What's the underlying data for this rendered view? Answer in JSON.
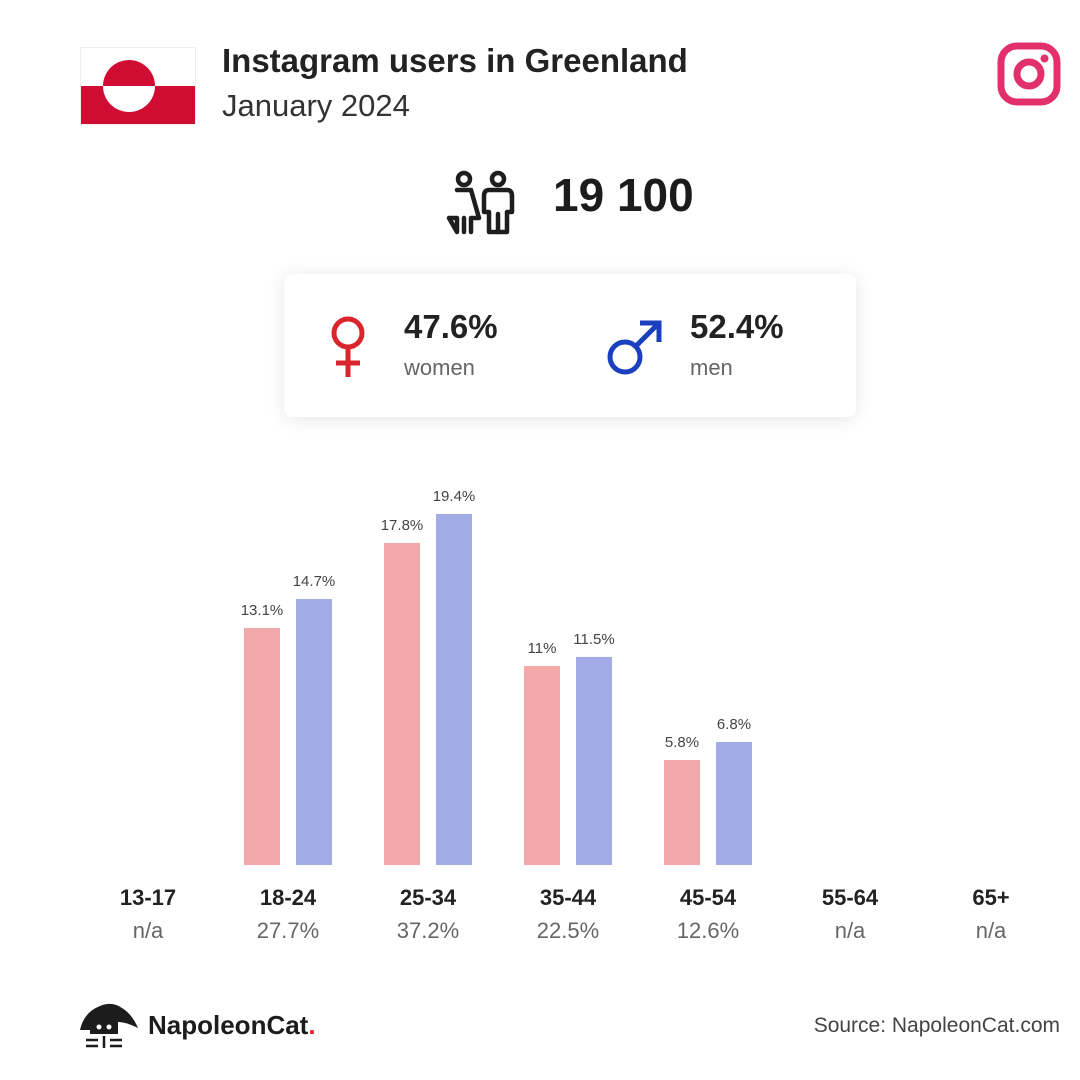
{
  "header": {
    "title": "Instagram users in Greenland",
    "subtitle": "January 2024"
  },
  "colors": {
    "flag_red": "#d00c33",
    "instagram": "#e1306c",
    "women": "#f3a8a9",
    "men": "#a2ade8",
    "female_symbol": "#d8262c",
    "male_symbol": "#1a3fbf"
  },
  "icons": {
    "flag": "greenland-flag-icon",
    "platform": "instagram-icon",
    "users": "people-icon",
    "women": "female-symbol-icon",
    "men": "male-symbol-icon",
    "brand": "napoleoncat-logo-icon"
  },
  "total": {
    "value": "19 100"
  },
  "gender": {
    "women": {
      "pct": "47.6%",
      "label": "women"
    },
    "men": {
      "pct": "52.4%",
      "label": "men"
    }
  },
  "chart_data": {
    "type": "bar",
    "categories": [
      "13-17",
      "18-24",
      "25-34",
      "35-44",
      "45-54",
      "55-64",
      "65+"
    ],
    "category_totals": [
      "n/a",
      "27.7%",
      "37.2%",
      "22.5%",
      "12.6%",
      "n/a",
      "n/a"
    ],
    "series": [
      {
        "key": "women",
        "values": [
          null,
          13.1,
          17.8,
          11,
          5.8,
          null,
          null
        ],
        "labels": [
          "",
          "13.1%",
          "17.8%",
          "11%",
          "5.8%",
          "",
          ""
        ]
      },
      {
        "key": "men",
        "values": [
          null,
          14.7,
          19.4,
          11.5,
          6.8,
          null,
          null
        ],
        "labels": [
          "",
          "14.7%",
          "19.4%",
          "11.5%",
          "6.8%",
          "",
          ""
        ]
      }
    ],
    "ylim": [
      0,
      19.4
    ],
    "grid": false,
    "legend": "none"
  },
  "footer": {
    "brand": "NapoleonCat",
    "brand_dot": ".",
    "source": "Source: NapoleonCat.com"
  }
}
